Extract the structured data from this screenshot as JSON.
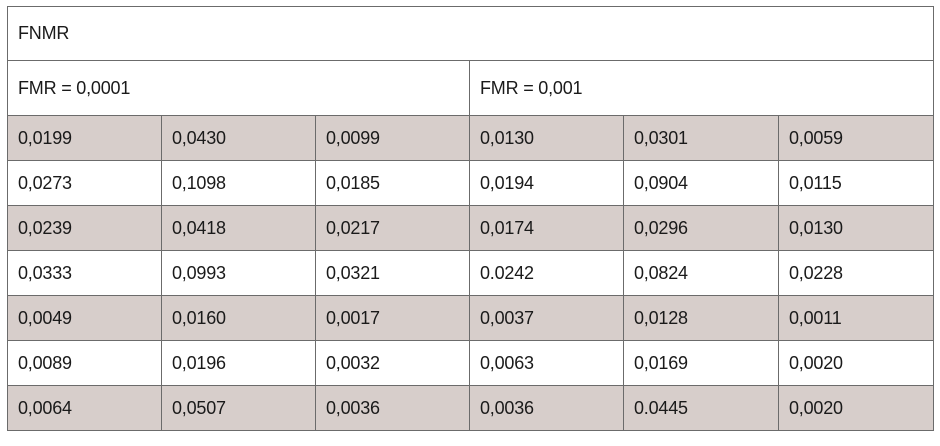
{
  "table": {
    "title": "FNMR",
    "groups": [
      "FMR = 0,0001",
      "FMR = 0,001"
    ],
    "rows": [
      [
        "0,0199",
        "0,0430",
        "0,0099",
        "0,0130",
        "0,0301",
        "0,0059"
      ],
      [
        "0,0273",
        "0,1098",
        "0,0185",
        "0,0194",
        "0,0904",
        "0,0115"
      ],
      [
        "0,0239",
        "0,0418",
        "0,0217",
        "0,0174",
        "0,0296",
        "0,0130"
      ],
      [
        "0,0333",
        "0,0993",
        "0,0321",
        "0.0242",
        "0,0824",
        "0,0228"
      ],
      [
        "0,0049",
        "0,0160",
        "0,0017",
        "0,0037",
        "0,0128",
        "0,0011"
      ],
      [
        "0,0089",
        "0,0196",
        "0,0032",
        "0,0063",
        "0,0169",
        "0,0020"
      ],
      [
        "0,0064",
        "0,0507",
        "0,0036",
        "0,0036",
        "0.0445",
        "0,0020"
      ]
    ]
  },
  "colors": {
    "shaded_row": "#d7cecb",
    "border": "#6b6b6b"
  }
}
